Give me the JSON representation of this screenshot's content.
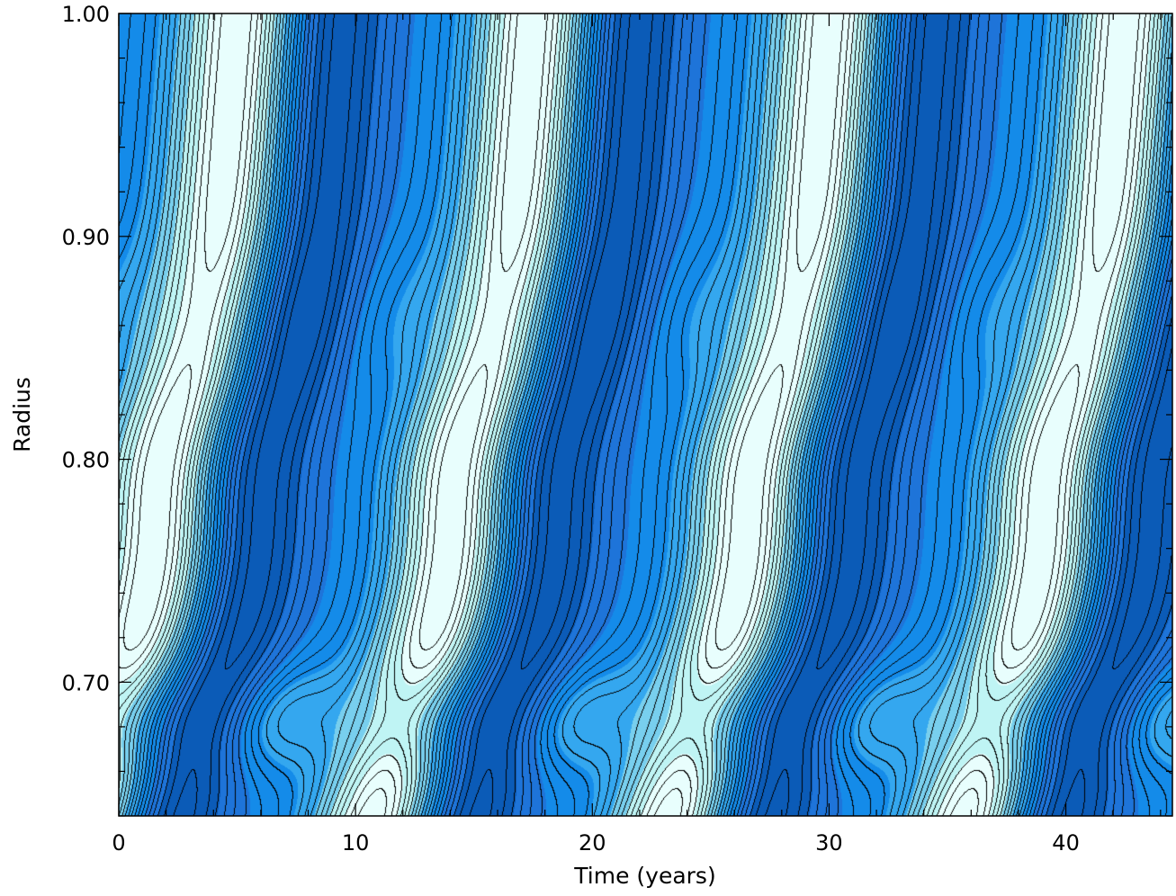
{
  "chart_data": {
    "type": "heatmap",
    "title": "",
    "xlabel": "Time (years)",
    "ylabel": "Radius",
    "xlim": [
      0,
      44.5
    ],
    "ylim": [
      0.64,
      1.0
    ],
    "x_ticks": [
      0,
      10,
      20,
      30,
      40
    ],
    "y_ticks": [
      0.7,
      0.8,
      0.9,
      1.0
    ],
    "x_tick_labels": [
      "0",
      "10",
      "20",
      "30",
      "40"
    ],
    "y_tick_labels": [
      "0.70",
      "0.80",
      "0.90",
      "1.00"
    ],
    "period_years": 12.5,
    "cycles_shown": 3.5,
    "grid": false,
    "legend": "none",
    "colormap": [
      "#0b5bb7",
      "#1e74d9",
      "#148be9",
      "#34a7ef",
      "#78cfee",
      "#bff4f4",
      "#e8fefd"
    ],
    "contour_color": "#000000"
  }
}
